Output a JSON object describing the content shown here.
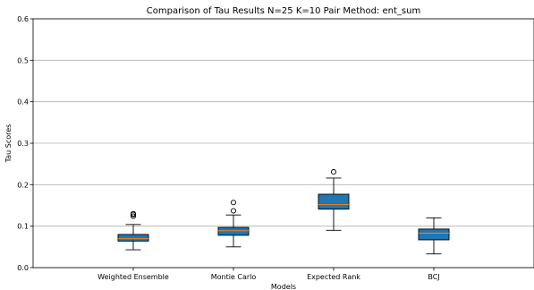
{
  "chart_data": {
    "type": "box",
    "title": "Comparison of Tau Results N=25 K=10 Pair Method: ent_sum",
    "xlabel": "Models",
    "ylabel": "Tau Scores",
    "ylim": [
      0,
      0.6
    ],
    "yticks": [
      "0.0",
      "0.1",
      "0.2",
      "0.3",
      "0.4",
      "0.5",
      "0.6"
    ],
    "grid": "horizontal",
    "box_color": "#1f77b4",
    "median_color": "#ff7f0e",
    "categories": [
      "Weighted Ensemble",
      "Montie Carlo",
      "Expected Rank",
      "BCJ"
    ],
    "boxes": [
      {
        "whisker_low": 0.043,
        "q1": 0.064,
        "median": 0.07,
        "q3": 0.08,
        "whisker_high": 0.104,
        "outliers": [
          0.124,
          0.128,
          0.13
        ]
      },
      {
        "whisker_low": 0.05,
        "q1": 0.078,
        "median": 0.089,
        "q3": 0.097,
        "whisker_high": 0.127,
        "outliers": [
          0.137,
          0.157
        ]
      },
      {
        "whisker_low": 0.09,
        "q1": 0.141,
        "median": 0.152,
        "q3": 0.177,
        "whisker_high": 0.216,
        "outliers": [
          0.231
        ]
      },
      {
        "whisker_low": 0.033,
        "q1": 0.067,
        "median": 0.083,
        "q3": 0.093,
        "whisker_high": 0.12,
        "outliers": []
      }
    ]
  }
}
